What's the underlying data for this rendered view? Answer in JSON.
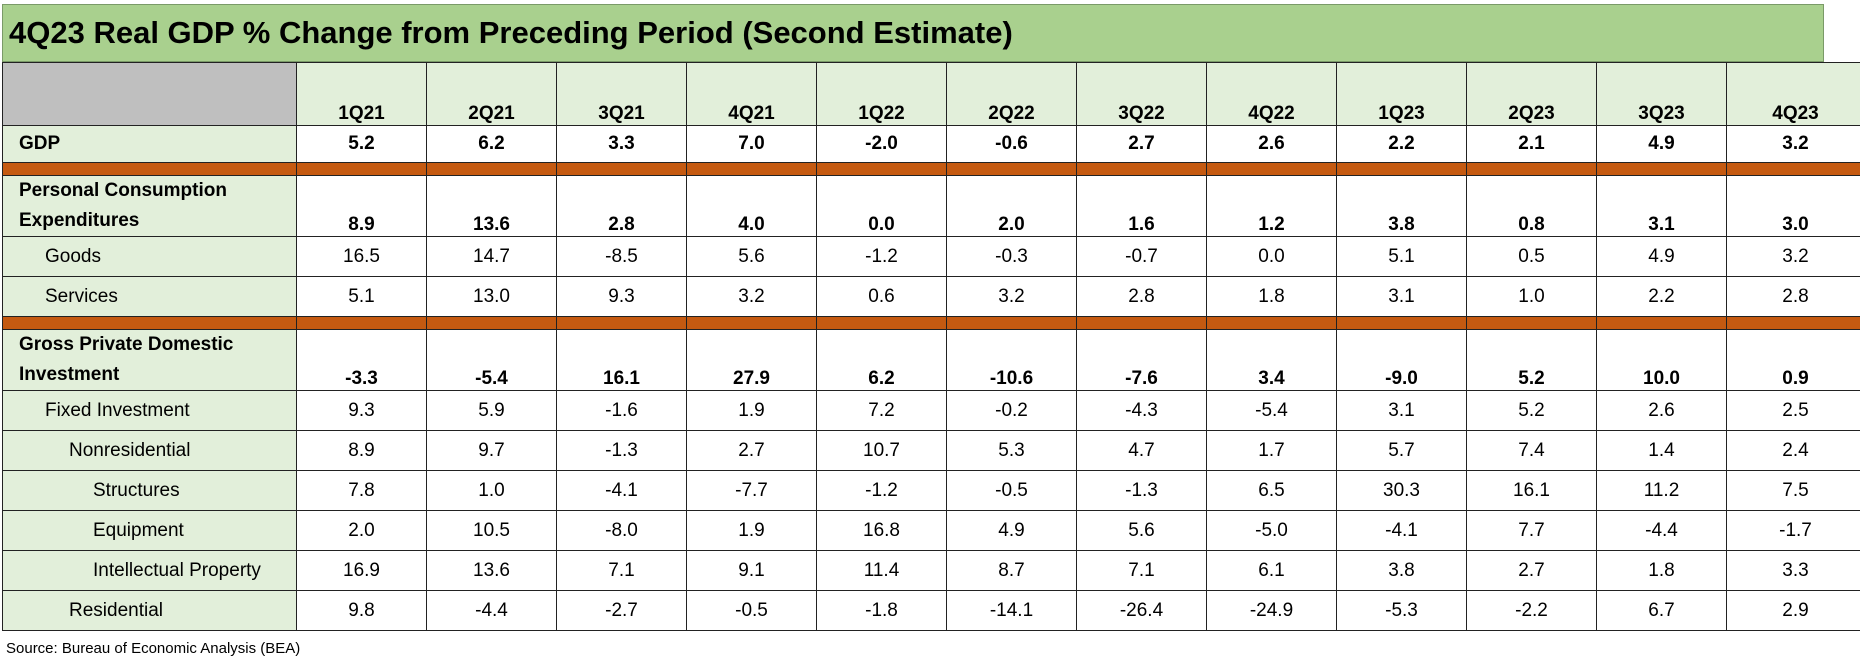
{
  "chart_data": {
    "type": "table",
    "title": "4Q23 Real GDP % Change from Preceding Period (Second Estimate)",
    "columns": [
      "1Q21",
      "2Q21",
      "3Q21",
      "4Q21",
      "1Q22",
      "2Q22",
      "3Q22",
      "4Q22",
      "1Q23",
      "2Q23",
      "3Q23",
      "4Q23"
    ],
    "gdp_row": {
      "label": "GDP",
      "values": [
        "5.2",
        "6.2",
        "3.3",
        "7.0",
        "-2.0",
        "-0.6",
        "2.7",
        "2.6",
        "2.2",
        "2.1",
        "4.9",
        "3.2"
      ]
    },
    "pce_section": {
      "header": {
        "label_line1": "Personal Consumption",
        "label_line2": "Expenditures",
        "values": [
          "8.9",
          "13.6",
          "2.8",
          "4.0",
          "0.0",
          "2.0",
          "1.6",
          "1.2",
          "3.8",
          "0.8",
          "3.1",
          "3.0"
        ]
      },
      "rows": [
        {
          "label": "Goods",
          "values": [
            "16.5",
            "14.7",
            "-8.5",
            "5.6",
            "-1.2",
            "-0.3",
            "-0.7",
            "0.0",
            "5.1",
            "0.5",
            "4.9",
            "3.2"
          ]
        },
        {
          "label": "Services",
          "values": [
            "5.1",
            "13.0",
            "9.3",
            "3.2",
            "0.6",
            "3.2",
            "2.8",
            "1.8",
            "3.1",
            "1.0",
            "2.2",
            "2.8"
          ]
        }
      ]
    },
    "investment_section": {
      "header": {
        "label_line1": "Gross Private Domestic",
        "label_line2": "Investment",
        "values": [
          "-3.3",
          "-5.4",
          "16.1",
          "27.9",
          "6.2",
          "-10.6",
          "-7.6",
          "3.4",
          "-9.0",
          "5.2",
          "10.0",
          "0.9"
        ]
      },
      "rows": [
        {
          "label": "Fixed Investment",
          "indent": 1,
          "values": [
            "9.3",
            "5.9",
            "-1.6",
            "1.9",
            "7.2",
            "-0.2",
            "-4.3",
            "-5.4",
            "3.1",
            "5.2",
            "2.6",
            "2.5"
          ]
        },
        {
          "label": "Nonresidential",
          "indent": 2,
          "values": [
            "8.9",
            "9.7",
            "-1.3",
            "2.7",
            "10.7",
            "5.3",
            "4.7",
            "1.7",
            "5.7",
            "7.4",
            "1.4",
            "2.4"
          ]
        },
        {
          "label": "Structures",
          "indent": 3,
          "values": [
            "7.8",
            "1.0",
            "-4.1",
            "-7.7",
            "-1.2",
            "-0.5",
            "-1.3",
            "6.5",
            "30.3",
            "16.1",
            "11.2",
            "7.5"
          ]
        },
        {
          "label": "Equipment",
          "indent": 3,
          "values": [
            "2.0",
            "10.5",
            "-8.0",
            "1.9",
            "16.8",
            "4.9",
            "5.6",
            "-5.0",
            "-4.1",
            "7.7",
            "-4.4",
            "-1.7"
          ]
        },
        {
          "label": "Intellectual Property",
          "indent": 3,
          "values": [
            "16.9",
            "13.6",
            "7.1",
            "9.1",
            "11.4",
            "8.7",
            "7.1",
            "6.1",
            "3.8",
            "2.7",
            "1.8",
            "3.3"
          ]
        },
        {
          "label": "Residential",
          "indent": 2,
          "values": [
            "9.8",
            "-4.4",
            "-2.7",
            "-0.5",
            "-1.8",
            "-14.1",
            "-26.4",
            "-24.9",
            "-5.3",
            "-2.2",
            "6.7",
            "2.9"
          ]
        }
      ]
    },
    "source": "Source: Bureau of Economic Analysis (BEA)",
    "colors": {
      "title_fill": "#a9d08e",
      "label_fill": "#e2efda",
      "corner_fill": "#bfbfbf",
      "separator_fill": "#c55a11"
    }
  }
}
